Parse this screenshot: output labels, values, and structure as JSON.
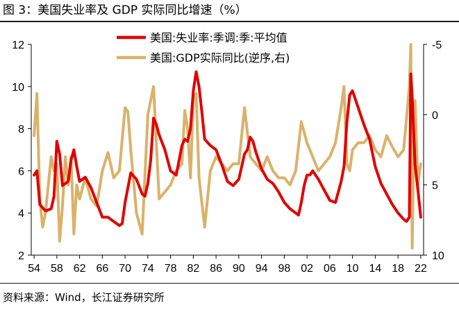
{
  "figure_title": "图 3：美国失业率及 GDP 实际同比增速（%）",
  "source_note": "资料来源：Wind，长江证券研究所",
  "colors": {
    "unemployment": "#e00000",
    "gdp": "#d9b26a",
    "axis": "#000000"
  },
  "chart_data": {
    "type": "line",
    "title": "美国失业率及 GDP 实际同比增速（%）",
    "legend_position": "top-center",
    "x_tick_labels": [
      "54",
      "58",
      "62",
      "66",
      "70",
      "74",
      "78",
      "82",
      "86",
      "90",
      "94",
      "98",
      "02",
      "06",
      "10",
      "14",
      "18",
      "22"
    ],
    "x_range": [
      1953.5,
      2022.5
    ],
    "y_left": {
      "range": [
        2,
        12
      ],
      "ticks": [
        "2",
        "4",
        "6",
        "8",
        "10",
        "12"
      ]
    },
    "y_right": {
      "range": [
        -5,
        10
      ],
      "inverted": true,
      "ticks": [
        "-5",
        "0",
        "5",
        "10"
      ]
    },
    "series": [
      {
        "name": "美国:失业率:季调:季:平均值",
        "axis": "left",
        "x": [
          1954,
          1954.5,
          1955,
          1956,
          1957,
          1957.5,
          1958,
          1958.5,
          1959,
          1960,
          1960.5,
          1961,
          1961.5,
          1962,
          1963,
          1964,
          1965,
          1966,
          1967,
          1968,
          1969,
          1969.5,
          1970,
          1970.5,
          1971,
          1972,
          1973,
          1973.5,
          1974,
          1974.5,
          1975,
          1975.5,
          1976,
          1977,
          1978,
          1979,
          1980,
          1980.5,
          1981,
          1981.5,
          1982,
          1982.5,
          1983,
          1983.5,
          1984,
          1985,
          1986,
          1987,
          1988,
          1989,
          1990,
          1990.5,
          1991,
          1991.5,
          1992,
          1992.5,
          1993,
          1994,
          1995,
          1996,
          1997,
          1998,
          1999,
          2000,
          2000.5,
          2001,
          2001.5,
          2002,
          2002.5,
          2003,
          2004,
          2005,
          2006,
          2007,
          2008,
          2008.5,
          2009,
          2009.5,
          2010,
          2011,
          2012,
          2013,
          2014,
          2015,
          2016,
          2017,
          2018,
          2019,
          2019.5,
          2020,
          2020.25,
          2020.5,
          2021,
          2021.5,
          2022
        ],
        "values": [
          5.8,
          6.0,
          4.4,
          4.1,
          4.2,
          4.8,
          7.4,
          6.8,
          5.3,
          5.5,
          6.5,
          7.0,
          6.2,
          5.5,
          5.7,
          5.2,
          4.5,
          3.8,
          3.8,
          3.6,
          3.4,
          3.5,
          4.5,
          5.2,
          5.9,
          5.6,
          4.9,
          4.8,
          5.4,
          6.5,
          8.5,
          8.2,
          7.7,
          7.0,
          6.0,
          5.8,
          7.2,
          7.5,
          7.4,
          8.0,
          9.8,
          10.7,
          10.0,
          8.8,
          7.5,
          7.2,
          7.0,
          6.3,
          5.5,
          5.3,
          5.6,
          6.2,
          6.8,
          7.0,
          7.6,
          7.4,
          6.9,
          6.1,
          5.6,
          5.4,
          5.0,
          4.5,
          4.2,
          4.0,
          3.9,
          4.5,
          5.3,
          5.8,
          5.8,
          6.0,
          5.6,
          5.1,
          4.6,
          4.5,
          5.5,
          6.2,
          8.3,
          9.6,
          9.8,
          9.0,
          8.2,
          7.5,
          6.2,
          5.4,
          4.9,
          4.4,
          4.0,
          3.7,
          3.6,
          3.8,
          10.6,
          9.5,
          6.3,
          5.1,
          3.8
        ]
      },
      {
        "name": "美国:GDP实际同比(逆序,右)",
        "axis": "right",
        "x": [
          1954,
          1954.5,
          1955,
          1955.5,
          1956,
          1957,
          1957.5,
          1958,
          1958.5,
          1959,
          1959.5,
          1960,
          1960.5,
          1961,
          1961.5,
          1962,
          1963,
          1964,
          1965,
          1966,
          1967,
          1968,
          1969,
          1970,
          1970.5,
          1971,
          1972,
          1973,
          1974,
          1974.5,
          1975,
          1976,
          1977,
          1978,
          1979,
          1980,
          1980.5,
          1981,
          1981.5,
          1982,
          1982.5,
          1983,
          1984,
          1985,
          1986,
          1987,
          1988,
          1989,
          1990,
          1990.5,
          1991,
          1992,
          1993,
          1994,
          1995,
          1996,
          1997,
          1998,
          1999,
          2000,
          2001,
          2002,
          2003,
          2004,
          2005,
          2006,
          2007,
          2008,
          2008.5,
          2009,
          2009.5,
          2010,
          2011,
          2012,
          2013,
          2014,
          2015,
          2016,
          2017,
          2018,
          2019,
          2020,
          2020.25,
          2020.5,
          2020.75,
          2021,
          2021.5,
          2022
        ],
        "values": [
          1.5,
          -1.5,
          6.0,
          8.0,
          7.0,
          3.0,
          4.0,
          3.5,
          9.0,
          6.5,
          3.0,
          5.0,
          3.0,
          8.5,
          5.0,
          6.0,
          4.5,
          6.0,
          6.5,
          4.0,
          2.7,
          4.5,
          4.0,
          -0.5,
          -0.2,
          2.5,
          7.0,
          8.5,
          0.0,
          -1.0,
          -2.0,
          6.0,
          5.5,
          5.0,
          4.0,
          3.5,
          -0.3,
          1.0,
          4.5,
          -1.0,
          -1.5,
          4.5,
          8.0,
          4.0,
          3.0,
          3.5,
          4.0,
          3.5,
          3.5,
          1.5,
          -0.5,
          3.0,
          3.5,
          4.0,
          3.0,
          4.0,
          4.5,
          4.5,
          5.0,
          4.0,
          0.5,
          2.0,
          3.0,
          4.0,
          3.5,
          3.0,
          2.0,
          -0.5,
          -2.0,
          3.5,
          4.0,
          2.5,
          2.0,
          2.0,
          1.5,
          2.5,
          3.0,
          1.5,
          2.3,
          3.0,
          2.5,
          -2.0,
          -5.0,
          9.5,
          2.5,
          -1.0,
          5.0,
          3.5
        ]
      }
    ]
  }
}
